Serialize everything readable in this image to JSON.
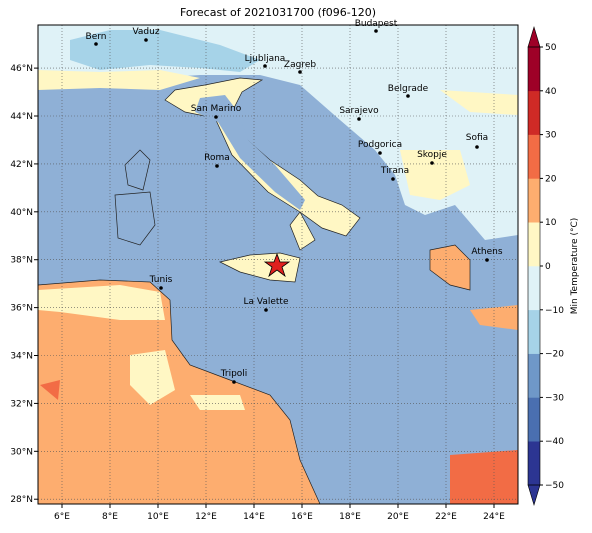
{
  "title": "Forecast of 2021031700 (f096-120)",
  "map": {
    "xlim": [
      5,
      25
    ],
    "ylim": [
      27.8,
      47.8
    ],
    "xticks": [
      {
        "value": 6,
        "label": "6°E"
      },
      {
        "value": 8,
        "label": "8°E"
      },
      {
        "value": 10,
        "label": "10°E"
      },
      {
        "value": 12,
        "label": "12°E"
      },
      {
        "value": 14,
        "label": "14°E"
      },
      {
        "value": 16,
        "label": "16°E"
      },
      {
        "value": 18,
        "label": "18°E"
      },
      {
        "value": 20,
        "label": "20°E"
      },
      {
        "value": 22,
        "label": "22°E"
      },
      {
        "value": 24,
        "label": "24°E"
      }
    ],
    "yticks": [
      {
        "value": 28,
        "label": "28°N"
      },
      {
        "value": 30,
        "label": "30°N"
      },
      {
        "value": 32,
        "label": "32°N"
      },
      {
        "value": 34,
        "label": "34°N"
      },
      {
        "value": 36,
        "label": "36°N"
      },
      {
        "value": 38,
        "label": "38°N"
      },
      {
        "value": 40,
        "label": "40°N"
      },
      {
        "value": 42,
        "label": "42°N"
      },
      {
        "value": 44,
        "label": "44°N"
      },
      {
        "value": 46,
        "label": "46°N"
      }
    ]
  },
  "cities": [
    "Bern",
    "Vaduz",
    "Budapest",
    "Ljubljana",
    "Zagreb",
    "Belgrade",
    "San Marino",
    "Sarajevo",
    "Sofia",
    "Podgorica",
    "Skopje",
    "Roma",
    "Tirana",
    "Athens",
    "Tunis",
    "La Valette",
    "Tripoli"
  ],
  "colorbar": {
    "label": "Min Temperature (°C)",
    "lim": [
      -50,
      50
    ],
    "ticks": [
      {
        "value": -50,
        "label": "−50"
      },
      {
        "value": -40,
        "label": "−40"
      },
      {
        "value": -30,
        "label": "−30"
      },
      {
        "value": -20,
        "label": "−20"
      },
      {
        "value": -10,
        "label": "−10"
      },
      0,
      10,
      20,
      30,
      40,
      50
    ],
    "colors": [
      "#2c3592",
      "#4a6fb0",
      "#6f98c8",
      "#a6d3e8",
      "#dff2f7",
      "#fff7c4",
      "#fdad6f",
      "#f26c45",
      "#cf2a26",
      "#9e0127"
    ]
  }
}
